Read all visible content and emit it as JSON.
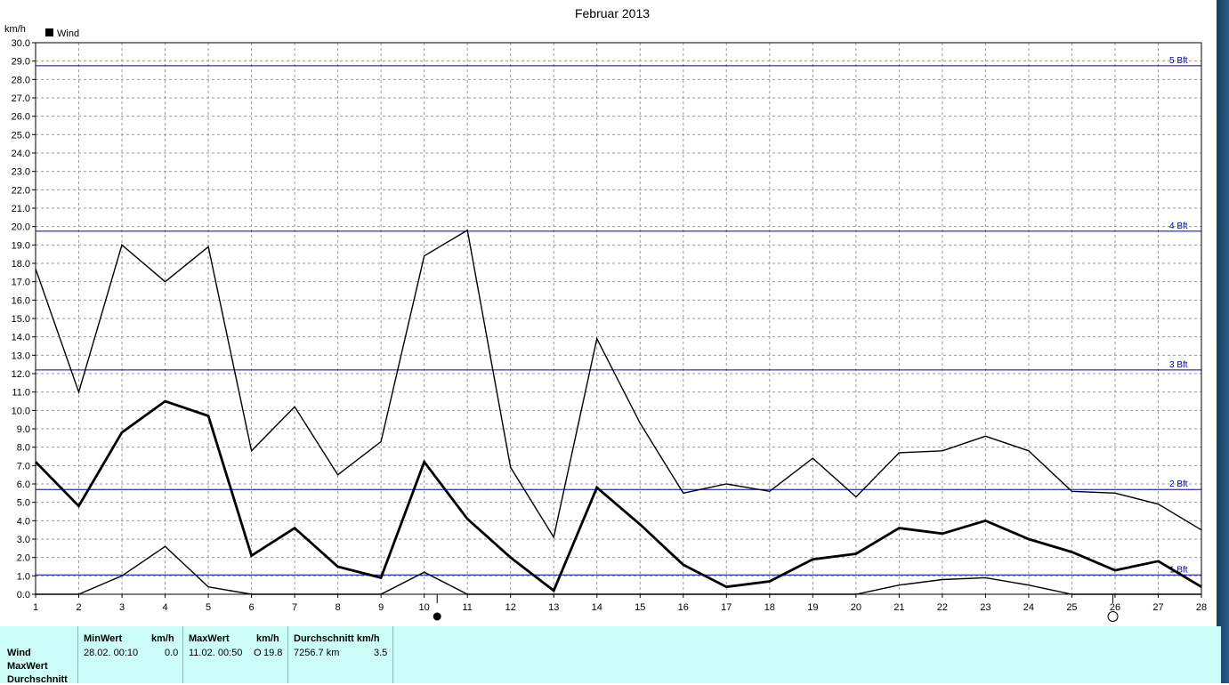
{
  "chart_data": {
    "type": "line",
    "title": "Februar 2013",
    "ylabel": "km/h",
    "xlabel": "",
    "ylim": [
      0,
      30
    ],
    "xlim": [
      1,
      28
    ],
    "x": [
      1,
      2,
      3,
      4,
      5,
      6,
      7,
      8,
      9,
      10,
      11,
      12,
      13,
      14,
      15,
      16,
      17,
      18,
      19,
      20,
      21,
      22,
      23,
      24,
      25,
      26,
      27,
      28
    ],
    "y_ticks": [
      "0.0",
      "1.0",
      "2.0",
      "3.0",
      "4.0",
      "5.0",
      "6.0",
      "7.0",
      "8.0",
      "9.0",
      "10.0",
      "11.0",
      "12.0",
      "13.0",
      "14.0",
      "15.0",
      "16.0",
      "17.0",
      "18.0",
      "19.0",
      "20.0",
      "21.0",
      "22.0",
      "23.0",
      "24.0",
      "25.0",
      "26.0",
      "27.0",
      "28.0",
      "29.0",
      "30.0"
    ],
    "x_ticks": [
      "1",
      "2",
      "3",
      "4",
      "5",
      "6",
      "7",
      "8",
      "9",
      "10",
      "11",
      "12",
      "13",
      "14",
      "15",
      "16",
      "17",
      "18",
      "19",
      "20",
      "21",
      "22",
      "23",
      "24",
      "25",
      "26",
      "27",
      "28"
    ],
    "legend": [
      {
        "label": "Wind",
        "color": "#000000"
      }
    ],
    "legend_position": "top-left",
    "grid": true,
    "series": [
      {
        "id": "max",
        "values": [
          17.7,
          11.0,
          19.0,
          17.0,
          18.9,
          7.8,
          10.2,
          6.5,
          8.3,
          18.4,
          19.8,
          6.9,
          3.1,
          13.9,
          9.3,
          5.5,
          6.0,
          5.6,
          7.4,
          5.3,
          7.7,
          7.8,
          8.6,
          7.8,
          5.6,
          5.5,
          4.9,
          3.5
        ],
        "width": 1.4
      },
      {
        "id": "avg",
        "values": [
          7.2,
          4.8,
          8.8,
          10.5,
          9.7,
          2.1,
          3.6,
          1.5,
          0.9,
          7.2,
          4.1,
          2.0,
          0.2,
          5.8,
          3.8,
          1.6,
          0.4,
          0.7,
          1.9,
          2.2,
          3.6,
          3.3,
          4.0,
          3.0,
          2.3,
          1.3,
          1.8,
          0.4
        ],
        "width": 2.8
      },
      {
        "id": "min",
        "values": [
          0.0,
          0.0,
          1.0,
          2.6,
          0.4,
          0.0,
          0.0,
          0.0,
          0.0,
          1.2,
          0.0,
          0.0,
          0.0,
          0.0,
          0.0,
          0.0,
          0.0,
          0.0,
          0.0,
          0.0,
          0.5,
          0.8,
          0.9,
          0.5,
          0.0,
          0.0,
          0.0,
          0.0
        ],
        "width": 1.4
      }
    ],
    "reference_lines": [
      {
        "label": "1 Bft",
        "y": 1.05
      },
      {
        "label": "2 Bft",
        "y": 5.7
      },
      {
        "label": "3 Bft",
        "y": 12.2
      },
      {
        "label": "4 Bft",
        "y": 19.75
      },
      {
        "label": "5 Bft",
        "y": 28.75
      }
    ],
    "reference_color": "#0000a0",
    "moon_phases": [
      {
        "phase": "new-moon",
        "x": 10.3
      },
      {
        "phase": "full-moon",
        "x": 25.95
      }
    ]
  },
  "stats": {
    "rows": [
      "Wind",
      "MaxWert",
      "Durchschnitt"
    ],
    "columns": [
      {
        "header": "MinWert",
        "unit": "km/h",
        "time": "28.02.  00:10",
        "value": "0.0"
      },
      {
        "header": "MaxWert",
        "unit": "km/h",
        "time": "11.02.  00:50",
        "dir": "O",
        "value": "19.8"
      },
      {
        "header": "Durchschnitt km/h",
        "distance": "7256.7 km",
        "value": "3.5"
      }
    ]
  }
}
